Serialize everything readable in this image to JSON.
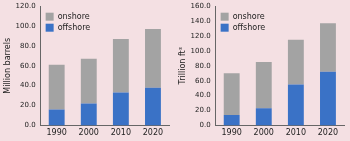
{
  "chart_data": [
    {
      "type": "bar",
      "stacked": true,
      "y_label": "Million barrels",
      "categories": [
        "1990",
        "2000",
        "2010",
        "2020"
      ],
      "series": [
        {
          "name": "onshore",
          "color": "#a3a3a3",
          "values": [
            45,
            45,
            54,
            59
          ]
        },
        {
          "name": "offshore",
          "color": "#3a72c6",
          "values": [
            16,
            22,
            33,
            38
          ]
        }
      ],
      "ylim": [
        0,
        120
      ],
      "yticks": [
        {
          "value": 0,
          "label": "0.0"
        },
        {
          "value": 20,
          "label": "20.0"
        },
        {
          "value": 40,
          "label": "40.0"
        },
        {
          "value": 60,
          "label": "60.0"
        },
        {
          "value": 80,
          "label": "80.0"
        },
        {
          "value": 100,
          "label": "100.0"
        },
        {
          "value": 120,
          "label": "120.0"
        }
      ],
      "legend": "upper left",
      "grid": false
    },
    {
      "type": "bar",
      "stacked": true,
      "y_label": "Trillion ft³",
      "categories": [
        "1990",
        "2000",
        "2010",
        "2020"
      ],
      "series": [
        {
          "name": "onshore",
          "color": "#a3a3a3",
          "values": [
            56,
            62,
            60,
            65
          ]
        },
        {
          "name": "offshore",
          "color": "#3a72c6",
          "values": [
            14,
            23,
            55,
            72
          ]
        }
      ],
      "ylim": [
        0,
        160
      ],
      "yticks": [
        {
          "value": 0,
          "label": "0.0"
        },
        {
          "value": 20,
          "label": "20.0"
        },
        {
          "value": 40,
          "label": "40.0"
        },
        {
          "value": 60,
          "label": "60.0"
        },
        {
          "value": 80,
          "label": "80.0"
        },
        {
          "value": 100,
          "label": "100.0"
        },
        {
          "value": 120,
          "label": "120.0"
        },
        {
          "value": 140,
          "label": "140.0"
        },
        {
          "value": 160,
          "label": "160.0"
        }
      ],
      "legend": "upper left",
      "grid": false
    }
  ]
}
